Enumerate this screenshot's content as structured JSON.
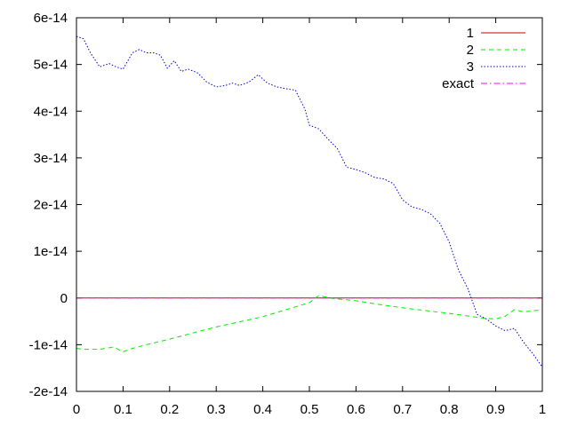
{
  "chart_data": {
    "type": "line",
    "title": "",
    "xlabel": "",
    "ylabel": "",
    "xlim": [
      0,
      1
    ],
    "ylim": [
      -2e-14,
      6e-14
    ],
    "grid": false,
    "legend_position": "top-right",
    "x_ticks": [
      {
        "value": 0,
        "label": "0"
      },
      {
        "value": 0.1,
        "label": "0.1"
      },
      {
        "value": 0.2,
        "label": "0.2"
      },
      {
        "value": 0.3,
        "label": "0.3"
      },
      {
        "value": 0.4,
        "label": "0.4"
      },
      {
        "value": 0.5,
        "label": "0.5"
      },
      {
        "value": 0.6,
        "label": "0.6"
      },
      {
        "value": 0.7,
        "label": "0.7"
      },
      {
        "value": 0.8,
        "label": "0.8"
      },
      {
        "value": 0.9,
        "label": "0.9"
      },
      {
        "value": 1,
        "label": "1"
      }
    ],
    "y_ticks": [
      {
        "value": -2e-14,
        "label": "-2e-14"
      },
      {
        "value": -1e-14,
        "label": "-1e-14"
      },
      {
        "value": 0,
        "label": "0"
      },
      {
        "value": 1e-14,
        "label": "1e-14"
      },
      {
        "value": 2e-14,
        "label": "2e-14"
      },
      {
        "value": 3e-14,
        "label": "3e-14"
      },
      {
        "value": 4e-14,
        "label": "4e-14"
      },
      {
        "value": 5e-14,
        "label": "5e-14"
      },
      {
        "value": 6e-14,
        "label": "6e-14"
      }
    ],
    "series": [
      {
        "name": "1",
        "color": "#cc0000",
        "dash": "solid",
        "x": [
          0,
          1
        ],
        "y": [
          0,
          0
        ]
      },
      {
        "name": "2",
        "color": "#00ee00",
        "dash": "dashed",
        "x": [
          0,
          0.02,
          0.05,
          0.08,
          0.1,
          0.12,
          0.15,
          0.2,
          0.25,
          0.3,
          0.35,
          0.4,
          0.45,
          0.5,
          0.52,
          0.55,
          0.6,
          0.65,
          0.7,
          0.75,
          0.8,
          0.85,
          0.88,
          0.9,
          0.92,
          0.94,
          0.96,
          1
        ],
        "y": [
          -1.08e-14,
          -1.1e-14,
          -1.1e-14,
          -1.05e-14,
          -1.15e-14,
          -1.08e-14,
          -1e-14,
          -8.8e-15,
          -7.5e-15,
          -6.2e-15,
          -5.1e-15,
          -4e-15,
          -2.5e-15,
          -1e-15,
          5e-16,
          -1e-16,
          -6e-16,
          -1.4e-15,
          -2.1e-15,
          -2.7e-15,
          -3.3e-15,
          -4e-15,
          -4.4e-15,
          -4.5e-15,
          -3.9e-15,
          -2.5e-15,
          -3e-15,
          -2.5e-15
        ]
      },
      {
        "name": "3",
        "color": "#0000cc",
        "dash": "dotted",
        "x": [
          0,
          0.015,
          0.03,
          0.05,
          0.07,
          0.085,
          0.1,
          0.12,
          0.135,
          0.15,
          0.165,
          0.18,
          0.195,
          0.21,
          0.225,
          0.24,
          0.26,
          0.28,
          0.3,
          0.32,
          0.335,
          0.35,
          0.37,
          0.39,
          0.41,
          0.43,
          0.45,
          0.47,
          0.49,
          0.5,
          0.52,
          0.54,
          0.56,
          0.58,
          0.6,
          0.62,
          0.64,
          0.66,
          0.68,
          0.7,
          0.72,
          0.74,
          0.76,
          0.78,
          0.8,
          0.82,
          0.84,
          0.86,
          0.88,
          0.9,
          0.92,
          0.94,
          0.96,
          0.98,
          1
        ],
        "y": [
          5.6e-14,
          5.55e-14,
          5.25e-14,
          4.95e-14,
          5.02e-14,
          4.95e-14,
          4.9e-14,
          5.25e-14,
          5.32e-14,
          5.25e-14,
          5.25e-14,
          5.2e-14,
          4.92e-14,
          5.08e-14,
          4.85e-14,
          4.9e-14,
          4.82e-14,
          4.62e-14,
          4.52e-14,
          4.55e-14,
          4.6e-14,
          4.55e-14,
          4.62e-14,
          4.78e-14,
          4.6e-14,
          4.52e-14,
          4.48e-14,
          4.45e-14,
          4.05e-14,
          3.7e-14,
          3.62e-14,
          3.4e-14,
          3.2e-14,
          2.8e-14,
          2.75e-14,
          2.68e-14,
          2.58e-14,
          2.55e-14,
          2.45e-14,
          2.1e-14,
          1.95e-14,
          1.9e-14,
          1.8e-14,
          1.6e-14,
          1.2e-14,
          6e-15,
          2e-15,
          -3.5e-15,
          -4.5e-15,
          -6e-15,
          -7e-15,
          -6.5e-15,
          -9.5e-15,
          -1.2e-14,
          -1.48e-14
        ]
      },
      {
        "name": "exact",
        "color": "#ff00ff",
        "dash": "dashdot",
        "x": [
          0,
          1
        ],
        "y": [
          0,
          0
        ]
      }
    ]
  }
}
